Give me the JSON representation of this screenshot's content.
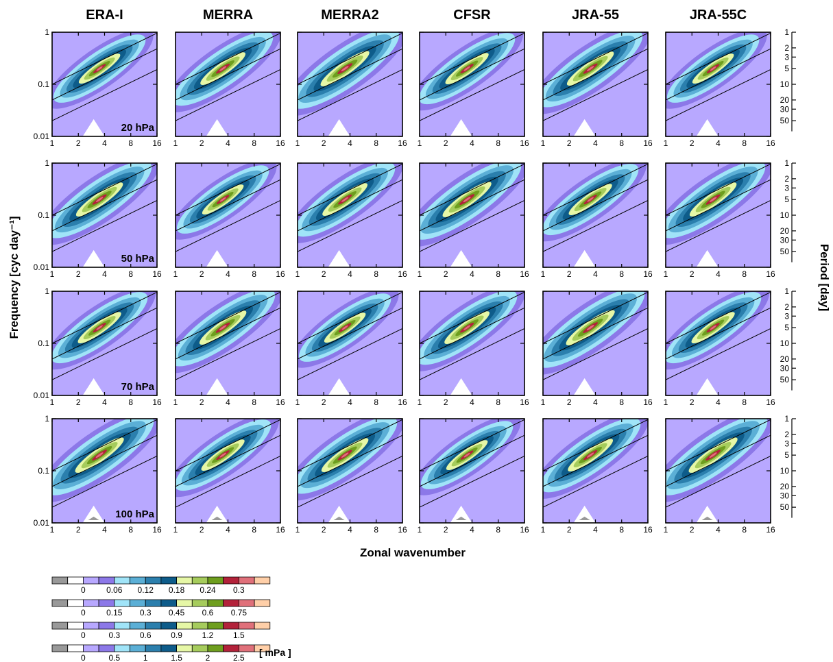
{
  "chart_data": {
    "type": "heatmap",
    "layout": "4 rows x 6 columns of contour panels",
    "columns": [
      "ERA-I",
      "MERRA",
      "MERRA2",
      "CFSR",
      "JRA-55",
      "JRA-55C"
    ],
    "rows": [
      {
        "level": "20 hPa",
        "colorbar_ticks": [
          "0",
          "0.06",
          "0.12",
          "0.18",
          "0.24",
          "0.3"
        ]
      },
      {
        "level": "50 hPa",
        "colorbar_ticks": [
          "0",
          "0.15",
          "0.3",
          "0.45",
          "0.6",
          "0.75"
        ]
      },
      {
        "level": "70 hPa",
        "colorbar_ticks": [
          "0",
          "0.3",
          "0.6",
          "0.9",
          "1.2",
          "1.5"
        ]
      },
      {
        "level": "100 hPa",
        "colorbar_ticks": [
          "0",
          "0.5",
          "1",
          "1.5",
          "2",
          "2.5"
        ]
      }
    ],
    "xlabel": "Zonal wavenumber",
    "ylabel": "Frequency [cyc day⁻¹]",
    "y2label": "Period [day]",
    "xscale": "log2",
    "yscale": "log10",
    "xlim": [
      1,
      16
    ],
    "ylim": [
      0.01,
      1
    ],
    "xticks": [
      "1",
      "2",
      "4",
      "8",
      "16"
    ],
    "minor_xticks": [
      "2",
      "4",
      "8",
      "16"
    ],
    "yticks": [
      "0.01",
      "0.1",
      "1"
    ],
    "period_ticks": [
      "1",
      "2",
      "3",
      "5",
      "10",
      "20",
      "30",
      "50"
    ],
    "reference_lines": [
      {
        "intercept_at_k1": 0.1
      },
      {
        "intercept_at_k1": 0.05
      },
      {
        "intercept_at_k1": 0.02
      }
    ],
    "peak": {
      "wavenumber": 3.5,
      "frequency": 0.2
    },
    "unit": "[ mPa ]",
    "colors": [
      "#999999",
      "#ffffff",
      "#b8a8ff",
      "#8c78e8",
      "#a0e4f8",
      "#5bafd6",
      "#2b7fad",
      "#0e5c8a",
      "#e6f7a6",
      "#a6cc5c",
      "#6e9e1e",
      "#b3223a",
      "#e0707a",
      "#ffcfa8"
    ]
  }
}
